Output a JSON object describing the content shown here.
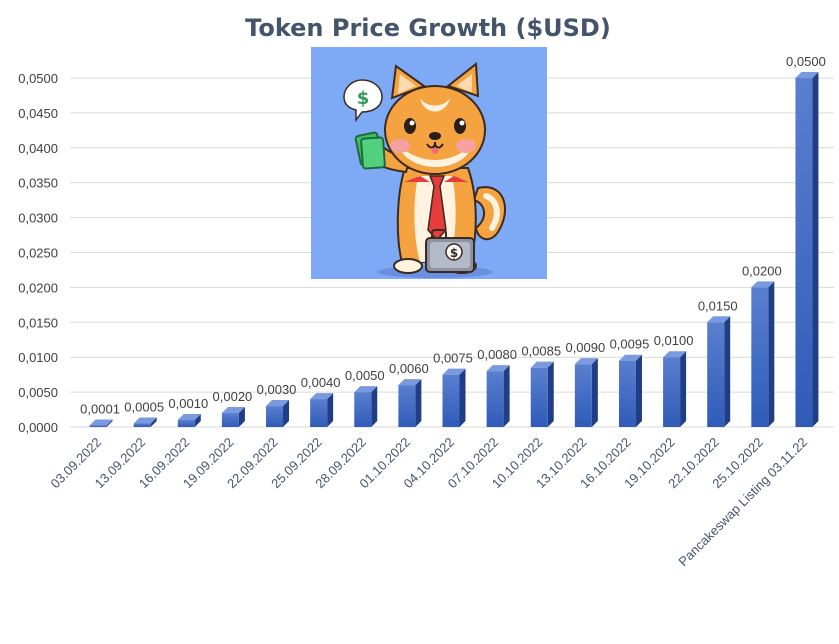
{
  "chart_data": {
    "type": "bar",
    "title": "Token Price Growth ($USD)",
    "xlabel": "",
    "ylabel": "",
    "categories": [
      "03.09.2022",
      "13.09.2022",
      "16.09.2022",
      "19.09.2022",
      "22.09.2022",
      "25.09.2022",
      "28.09.2022",
      "01.10.2022",
      "04.10.2022",
      "07.10.2022",
      "10.10.2022",
      "13.10.2022",
      "16.10.2022",
      "19.10.2022",
      "22.10.2022",
      "25.10.2022",
      "Pancakeswap Listing 03.11.22"
    ],
    "values": [
      0.0001,
      0.0005,
      0.001,
      0.002,
      0.003,
      0.004,
      0.005,
      0.006,
      0.0075,
      0.008,
      0.0085,
      0.009,
      0.0095,
      0.01,
      0.015,
      0.02,
      0.05
    ],
    "data_labels": [
      "0,0001",
      "0,0005",
      "0,0010",
      "0,0020",
      "0,0030",
      "0,0040",
      "0,0050",
      "0,0060",
      "0,0075",
      "0,0080",
      "0,0085",
      "0,0090",
      "0,0095",
      "0,0100",
      "0,0150",
      "0,0200",
      "0,0500"
    ],
    "ylim": [
      0,
      0.05
    ],
    "yticks": [
      "0,0000",
      "0,0050",
      "0,0100",
      "0,0150",
      "0,0200",
      "0,0250",
      "0,0300",
      "0,0350",
      "0,0400",
      "0,0450",
      "0,0500"
    ],
    "grid": true,
    "bar_style": "3d-column",
    "colors": {
      "bar_top": "#5A7FD0",
      "bar_bottom": "#2F5BB8",
      "bar_side": "#1F3E85",
      "bar_cap": "#7A9AE0",
      "grid": "#D9D9D9",
      "title": "#44546A"
    }
  },
  "illustration": {
    "icon": "shiba-inu-businessman-icon"
  }
}
